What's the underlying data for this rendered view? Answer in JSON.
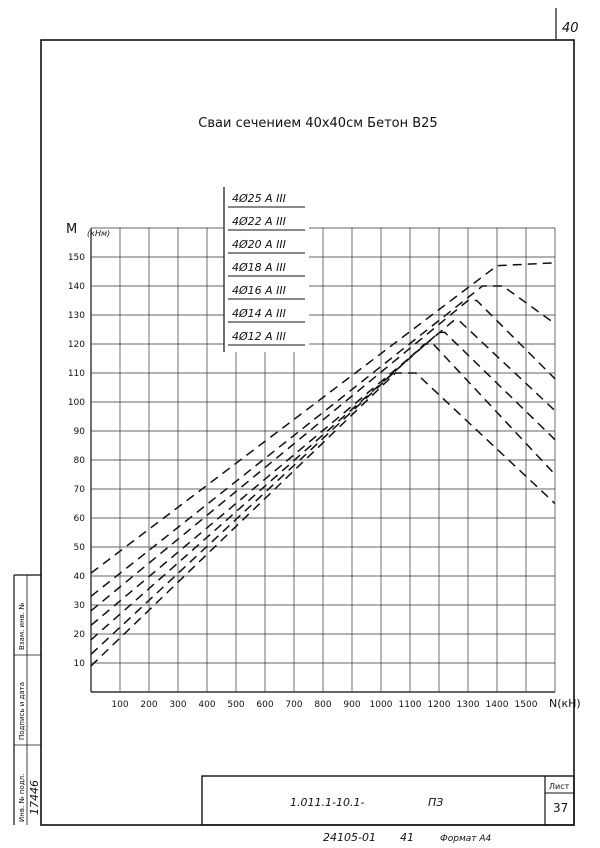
{
  "corner_page_number": "40",
  "chart_data": {
    "type": "line",
    "title": "Сваи сечением 40х40см Бетон В25",
    "xlabel": "N(кН)",
    "ylabel": "M",
    "ylabel_unit": "(кНм)",
    "xlim": [
      0,
      1600
    ],
    "ylim": [
      0,
      160
    ],
    "x_ticks": [
      100,
      200,
      300,
      400,
      500,
      600,
      700,
      800,
      900,
      1000,
      1100,
      1200,
      1300,
      1400,
      1500
    ],
    "y_ticks": [
      10,
      20,
      30,
      40,
      50,
      60,
      70,
      80,
      90,
      100,
      110,
      120,
      130,
      140,
      150
    ],
    "grid": true,
    "line_style": "dashed",
    "series": [
      {
        "name": "4Ø25 А III",
        "x": [
          0,
          1400,
          1600
        ],
        "y": [
          41,
          147,
          148
        ]
      },
      {
        "name": "4Ø22 А III",
        "x": [
          0,
          1350,
          1420,
          1600
        ],
        "y": [
          33,
          140,
          140,
          127
        ]
      },
      {
        "name": "4Ø20 А III",
        "x": [
          0,
          1300,
          1330,
          1600
        ],
        "y": [
          28,
          135,
          135,
          108
        ]
      },
      {
        "name": "4Ø18 А III",
        "x": [
          0,
          1250,
          1270,
          1600
        ],
        "y": [
          23,
          128,
          128,
          97
        ]
      },
      {
        "name": "4Ø16 А III",
        "x": [
          0,
          1200,
          1220,
          1600
        ],
        "y": [
          18,
          124,
          124,
          87
        ]
      },
      {
        "name": "4Ø14 А III",
        "x": [
          0,
          1150,
          1180,
          1600
        ],
        "y": [
          13,
          120,
          120,
          75
        ]
      },
      {
        "name": "4Ø12 А III",
        "x": [
          0,
          1050,
          1120,
          1600
        ],
        "y": [
          9,
          110,
          110,
          65
        ]
      }
    ]
  },
  "title_block": {
    "designation": "1.011.1-10.1-",
    "section": "ПЗ",
    "sheet_label": "Лист",
    "sheet_number": "37",
    "inventory_number": "17446",
    "side_labels": [
      "Инв. № подл.",
      "Подпись и дата",
      "Взам. инв. №"
    ]
  },
  "footer": {
    "code": "24105-01",
    "page": "41",
    "format": "Формат А4"
  },
  "colors": {
    "ink": "#111111",
    "grid": "#333333",
    "paper": "#ffffff"
  }
}
